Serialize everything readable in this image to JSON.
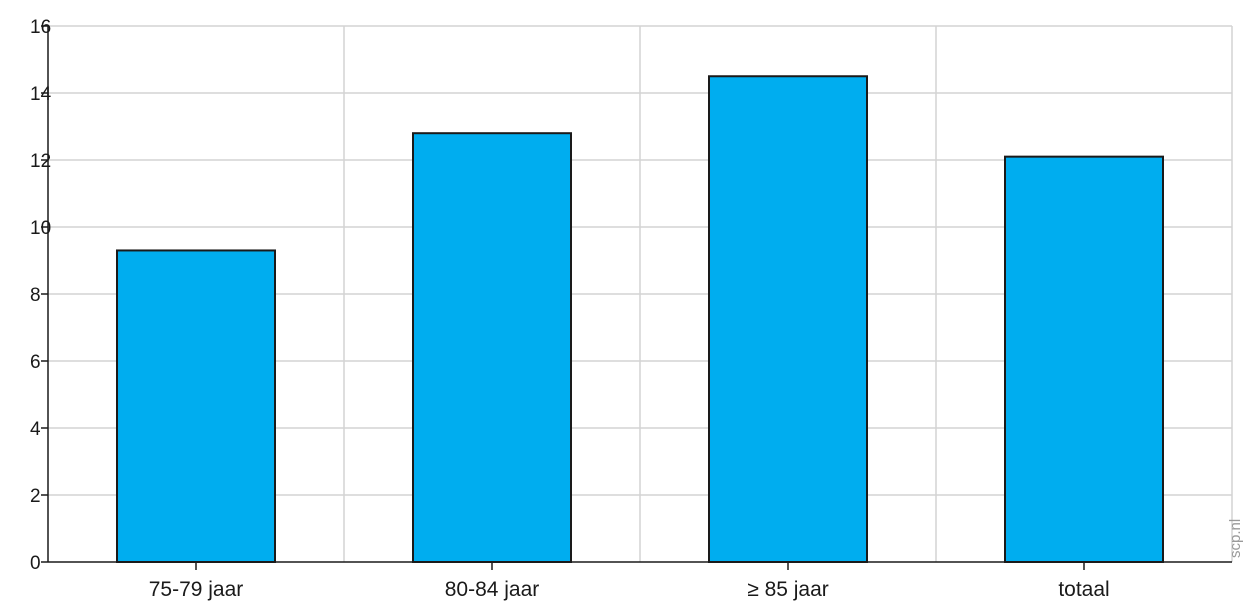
{
  "chart_data": {
    "type": "bar",
    "categories": [
      "75-79 jaar",
      "80-84 jaar",
      "≥ 85 jaar",
      "totaal"
    ],
    "values": [
      9.3,
      12.8,
      14.5,
      12.1
    ],
    "ylim": [
      0,
      16
    ],
    "yticks": [
      0,
      2,
      4,
      6,
      8,
      10,
      12,
      14,
      16
    ],
    "ytick_labels": [
      "0",
      "2",
      "4",
      "6",
      "8",
      "10",
      "12",
      "14",
      "16"
    ],
    "grid": true,
    "bar_color": "#00adef",
    "bar_edge_color": "#1a1a1a"
  },
  "watermark": "scp.nl"
}
